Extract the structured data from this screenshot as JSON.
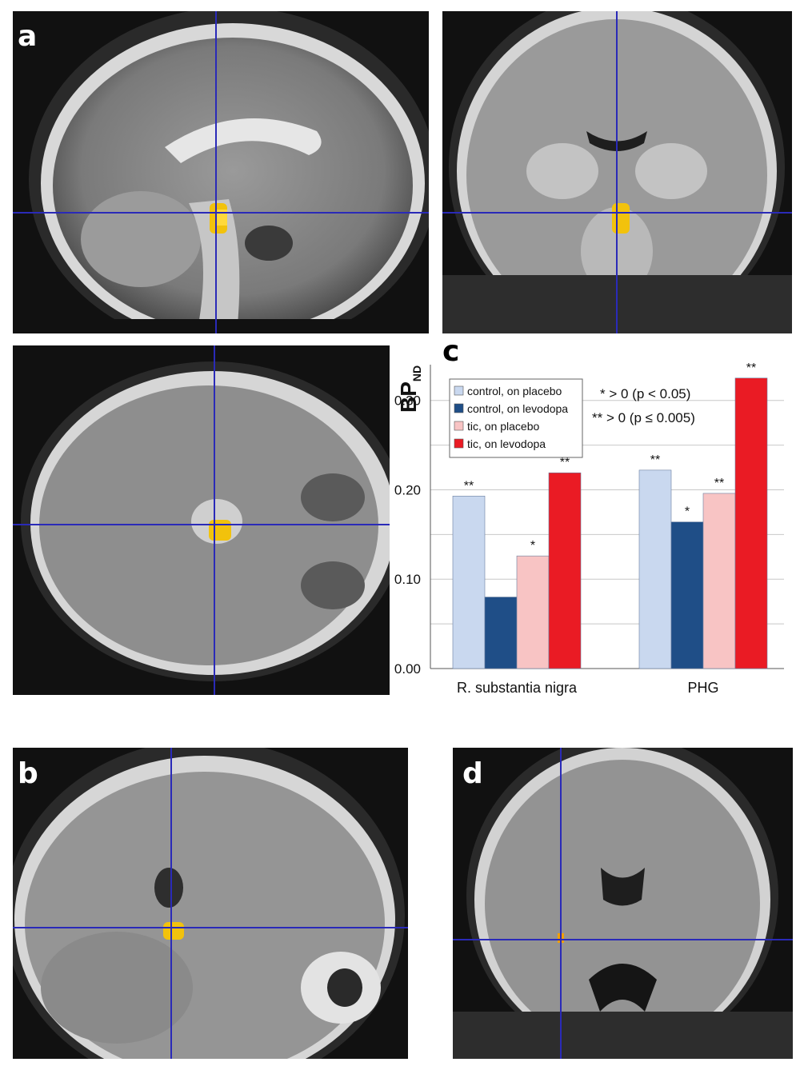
{
  "panels": {
    "a": {
      "label": "a"
    },
    "b": {
      "label": "b"
    },
    "c": {
      "label": "c"
    },
    "d": {
      "label": "d"
    }
  },
  "chart_data": {
    "type": "bar",
    "ylabel_main": "BP",
    "ylabel_sub": "ND",
    "categories": [
      "R. substantia nigra",
      "PHG"
    ],
    "ylim": [
      0,
      0.34
    ],
    "yticks": [
      "0.00",
      "0.10",
      "0.20",
      "0.30"
    ],
    "ytick_values": [
      0,
      0.1,
      0.2,
      0.3
    ],
    "grid": true,
    "legend_position": "top-left",
    "series": [
      {
        "name": "control, on placebo",
        "color": "#c9d8ef",
        "values": [
          0.193,
          0.222
        ],
        "marks": [
          "**",
          "**"
        ]
      },
      {
        "name": "control, on levodopa",
        "color": "#1f4e87",
        "values": [
          0.08,
          0.164
        ],
        "marks": [
          "",
          "*"
        ]
      },
      {
        "name": "tic, on placebo",
        "color": "#f8c4c4",
        "values": [
          0.126,
          0.196
        ],
        "marks": [
          "*",
          "**"
        ]
      },
      {
        "name": "tic, on levodopa",
        "color": "#ea1b24",
        "values": [
          0.219,
          0.325
        ],
        "marks": [
          "**",
          "**"
        ]
      }
    ],
    "annotations": [
      "* > 0 (p < 0.05)",
      "** > 0 (p ≤ 0.005)"
    ]
  }
}
